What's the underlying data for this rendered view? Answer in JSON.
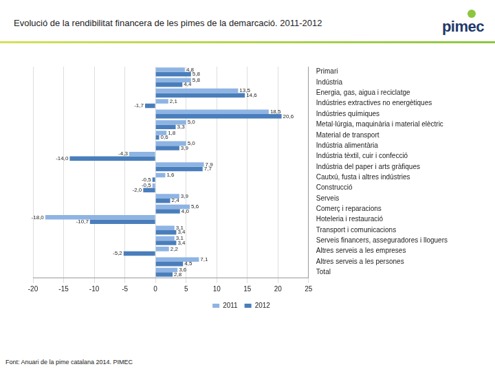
{
  "chart_data": {
    "type": "bar",
    "orientation": "horizontal",
    "title": "Evolució de la rendibilitat financera de les pimes de la demarcació. 2011-2012",
    "annotations": [
      "Font: Anuari de la pime catalana 2014. PIMEC"
    ],
    "categories": [
      "Primari",
      "Indústria",
      "Energia, gas, aigua i reciclatge",
      "Indústries extractives no energètiques",
      "Indústries químiques",
      "Metal·lúrgia, maquinària i material elèctric",
      "Material de transport",
      "Indústria alimentària",
      "Indústria tèxtil, cuir i confecció",
      "Indústria del paper i arts gràfiques",
      "Cautxú, fusta i altres indústries",
      "Construcció",
      "Serveis",
      "Comerç i reparacions",
      "Hoteleria i restauració",
      "Transport i comunicacions",
      "Serveis financers, asseguradores i lloguers",
      "Altres serveis a les empreses",
      "Altres serveis a les persones",
      "Total"
    ],
    "series": [
      {
        "name": "2011",
        "color": "#8eb4e3",
        "values": [
          4.8,
          5.8,
          13.5,
          2.1,
          18.5,
          5.0,
          1.8,
          5.0,
          -4.3,
          7.9,
          1.6,
          -0.5,
          3.9,
          5.6,
          -18.0,
          3.1,
          3.1,
          2.2,
          7.1,
          3.6
        ],
        "value_labels": [
          "4,8",
          "5,8",
          "13,5",
          "2,1",
          "18,5",
          "5,0",
          "1,8",
          "5,0",
          "-4,3",
          "7,9",
          "1,6",
          "-0,5",
          "3,9",
          "5,6",
          "-18,0",
          "3,1",
          "3,1",
          "2,2",
          "7,1",
          "3,6"
        ]
      },
      {
        "name": "2012",
        "color": "#4a7ebb",
        "values": [
          5.8,
          4.4,
          14.6,
          -1.7,
          20.6,
          3.3,
          0.6,
          3.9,
          -14.0,
          7.7,
          -0.5,
          -2.0,
          2.4,
          4.0,
          -10.7,
          3.4,
          3.4,
          -5.2,
          4.5,
          2.8
        ],
        "value_labels": [
          "5,8",
          "4,4",
          "14,6",
          "-1,7",
          "20,6",
          "3,3",
          "0,6",
          "3,9",
          "-14,0",
          "7,7",
          "-0,5",
          "-2,0",
          "2,4",
          "4,0",
          "-10,7",
          "3,4",
          "3,4",
          "-5,2",
          "4,5",
          "2,8"
        ]
      }
    ],
    "xlim": [
      -20,
      25
    ],
    "xticks": [
      -20,
      -15,
      -10,
      -5,
      0,
      5,
      10,
      15,
      20,
      25
    ],
    "grid": true,
    "data_labels": true,
    "legend": "bottom"
  },
  "header": {
    "logo": "pimec"
  }
}
